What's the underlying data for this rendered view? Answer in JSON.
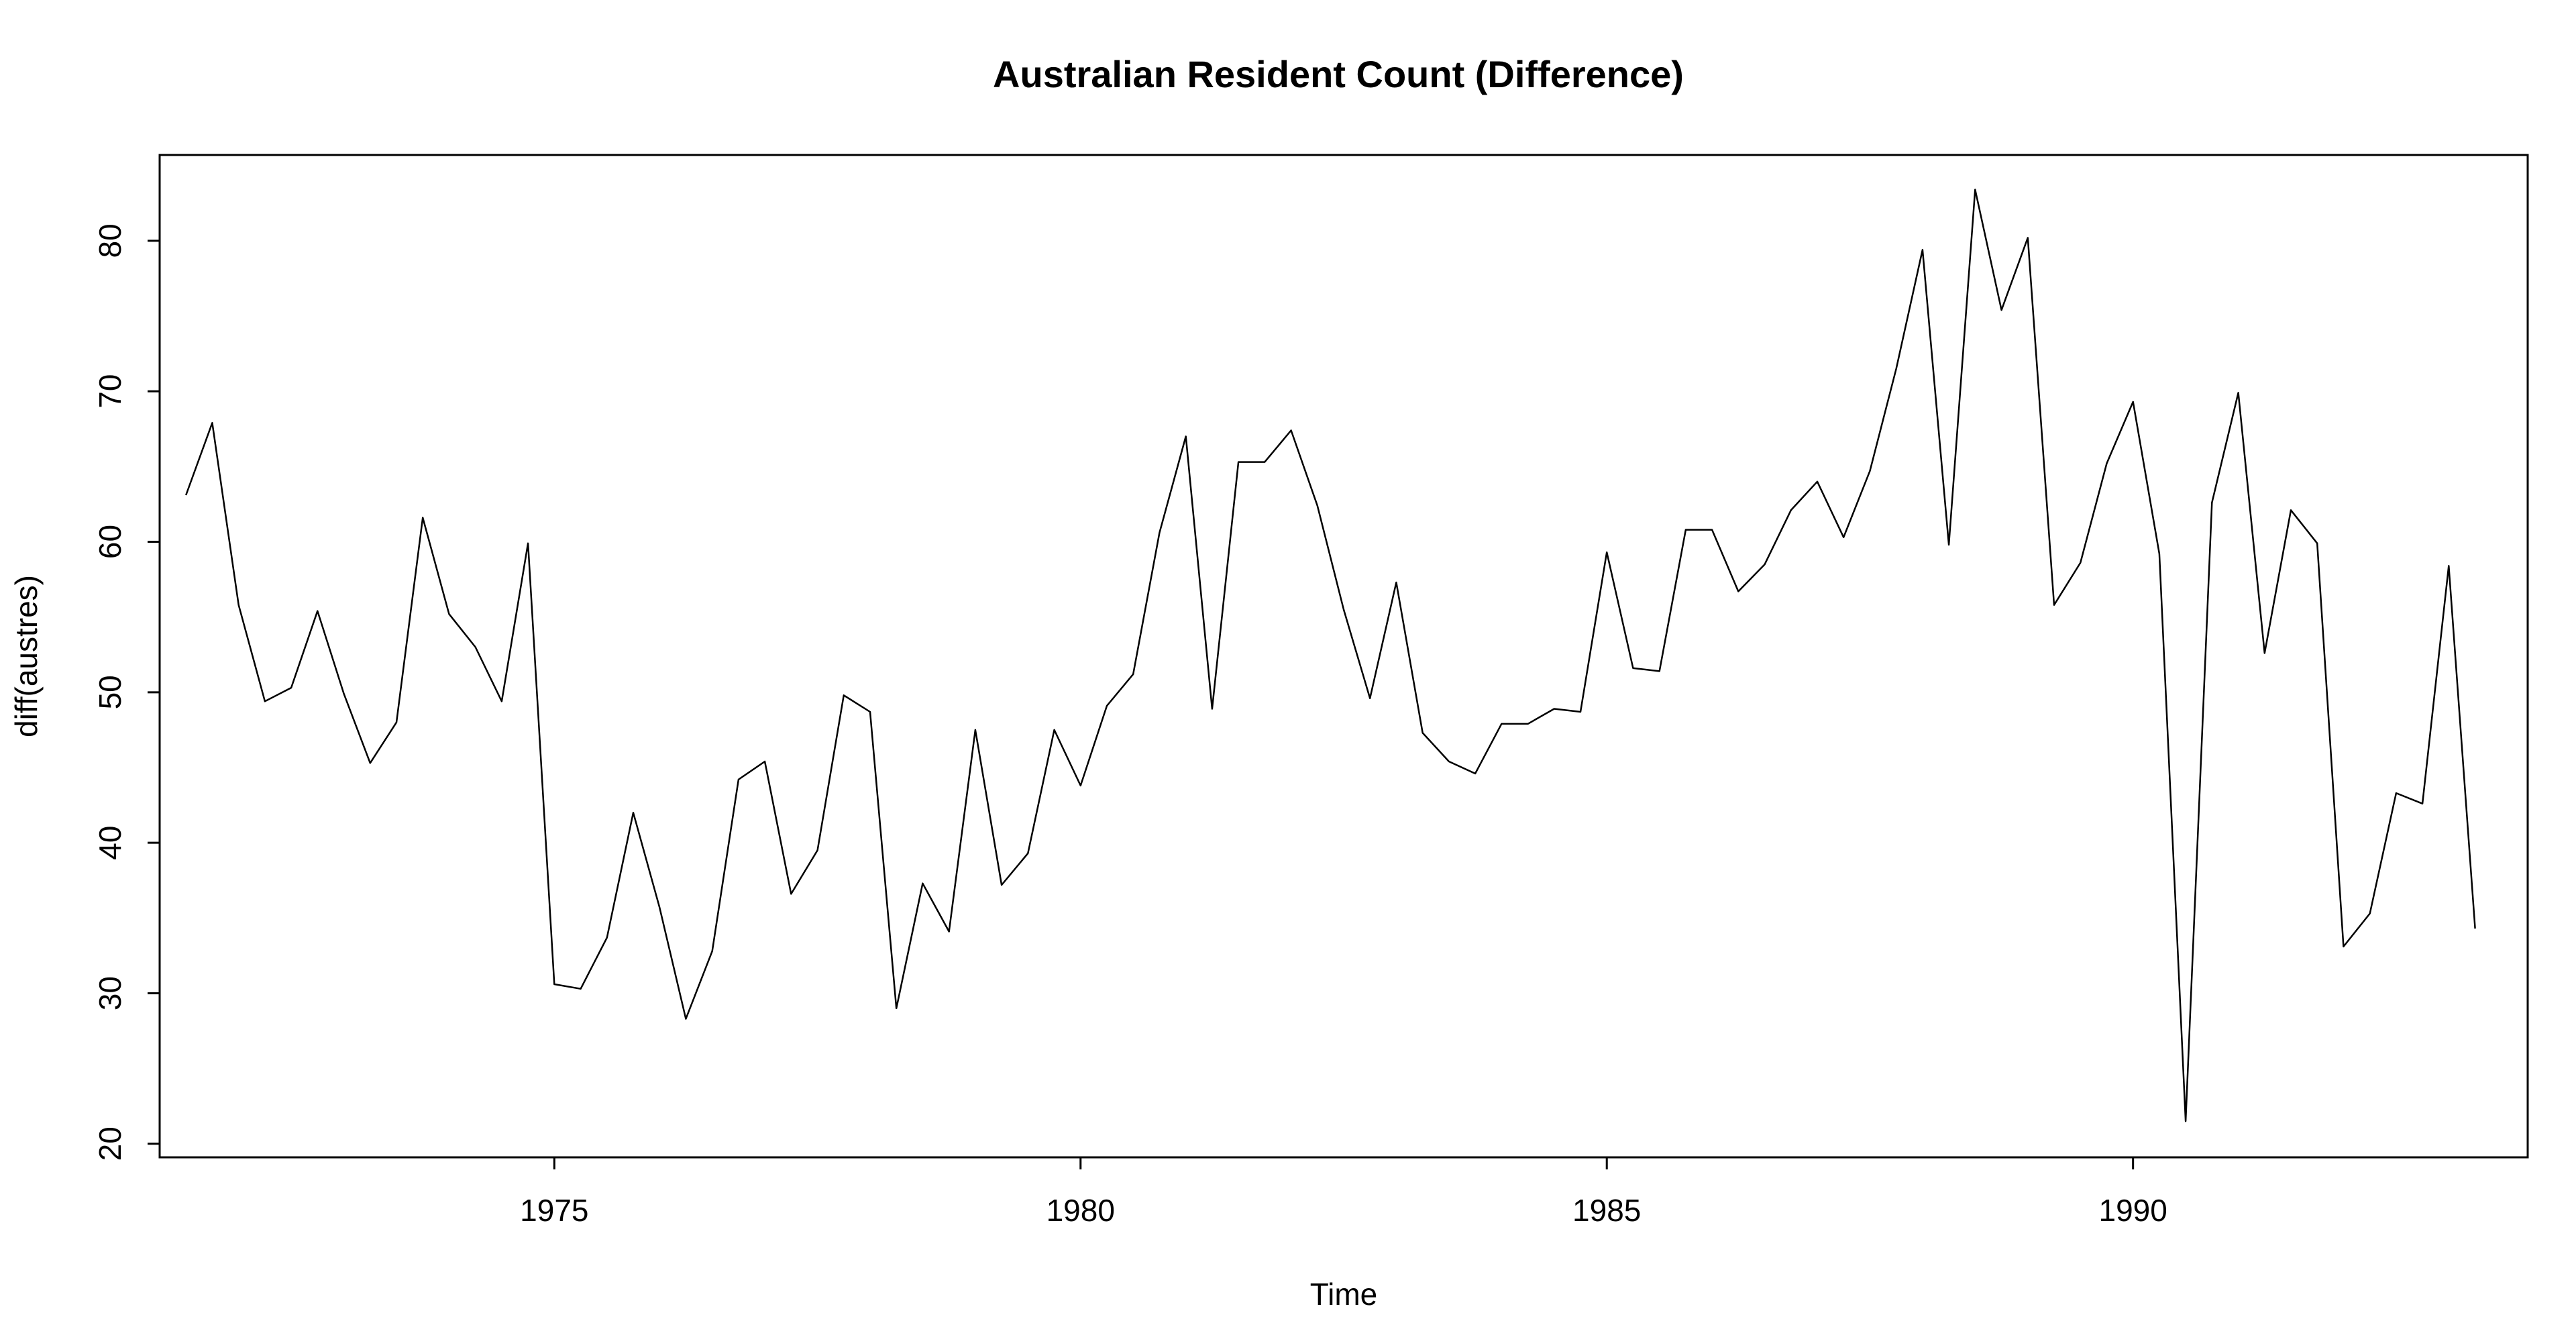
{
  "chart_data": {
    "type": "line",
    "title": "Australian Resident Count (Difference)",
    "xlabel": "Time",
    "ylabel": "diff(austres)",
    "xlim": [
      1971.25,
      1993.75
    ],
    "ylim": [
      19.1,
      85.7
    ],
    "x_ticks": [
      1975,
      1980,
      1985,
      1990
    ],
    "y_ticks": [
      20,
      30,
      40,
      50,
      60,
      70,
      80
    ],
    "grid": false,
    "x_start": 1971.5,
    "x_step": 0.25,
    "colors": {
      "line": "#000000",
      "axis": "#000000",
      "background": "#ffffff"
    },
    "series": [
      {
        "values": [
          63.1,
          67.9,
          55.8,
          49.4,
          50.3,
          55.4,
          49.9,
          45.3,
          48.0,
          61.6,
          55.2,
          53.0,
          49.4,
          59.9,
          30.6,
          30.3,
          33.7,
          42.0,
          35.7,
          28.3,
          32.8,
          44.2,
          45.4,
          36.6,
          39.5,
          49.8,
          48.7,
          29.0,
          37.3,
          34.1,
          47.5,
          37.2,
          39.3,
          47.5,
          43.8,
          49.1,
          51.2,
          60.6,
          67.0,
          48.9,
          65.3,
          65.3,
          67.4,
          62.4,
          55.5,
          49.6,
          57.3,
          47.3,
          45.4,
          44.6,
          47.9,
          47.9,
          48.9,
          48.7,
          59.3,
          51.6,
          51.4,
          60.8,
          60.8,
          56.7,
          58.5,
          62.1,
          64.0,
          60.3,
          64.7,
          71.5,
          79.4,
          59.8,
          83.4,
          75.4,
          80.2,
          55.8,
          58.6,
          65.2,
          69.3,
          59.2,
          21.5,
          62.6,
          69.9,
          52.6,
          62.1,
          59.9,
          33.1,
          35.3,
          43.3,
          42.6,
          58.4,
          34.3
        ]
      }
    ]
  }
}
